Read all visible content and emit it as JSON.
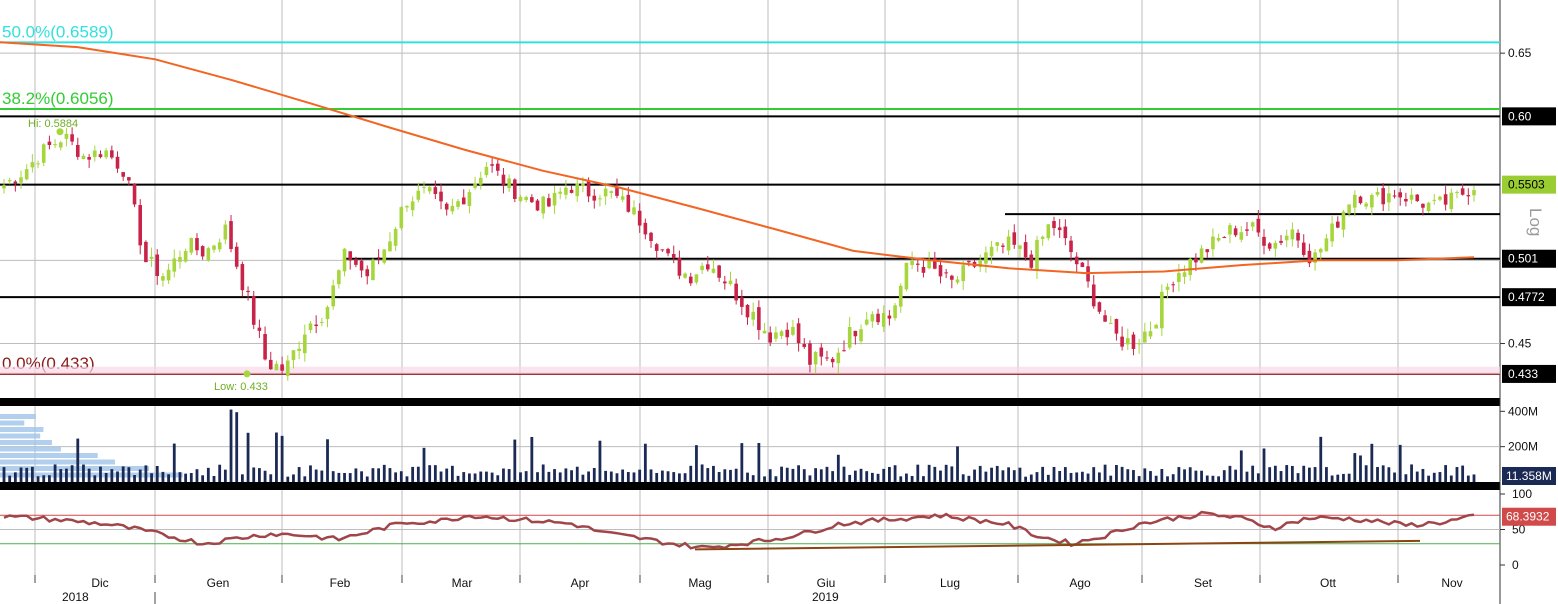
{
  "colors": {
    "up": "#a6d63c",
    "down": "#c8244a",
    "ma": "#f26522",
    "fib50": "#33e0e0",
    "fib382": "#33cc33",
    "fib0": "#8b1a1a",
    "volume": "#1b2a55",
    "rsi": "#a0464a",
    "grid": "#bdbdbd",
    "tag_green": "#9acd32"
  },
  "chart_data": [
    {
      "type": "candlestick",
      "panel": "price",
      "ylim": [
        0.42,
        0.69
      ],
      "yticks": [
        0.45,
        0.65
      ],
      "months": [
        "Dic",
        "Gen",
        "Feb",
        "Mar",
        "Apr",
        "Mag",
        "Giu",
        "Lug",
        "Ago",
        "Set",
        "Ott",
        "Nov"
      ],
      "years": [
        "2018",
        "2019"
      ],
      "price_path": [
        0.55,
        0.56,
        0.575,
        0.585,
        0.57,
        0.575,
        0.56,
        0.5,
        0.49,
        0.51,
        0.505,
        0.52,
        0.48,
        0.44,
        0.435,
        0.46,
        0.47,
        0.505,
        0.49,
        0.51,
        0.54,
        0.545,
        0.53,
        0.545,
        0.565,
        0.55,
        0.54,
        0.535,
        0.55,
        0.545,
        0.545,
        0.535,
        0.52,
        0.5,
        0.49,
        0.5,
        0.485,
        0.47,
        0.455,
        0.46,
        0.44,
        0.44,
        0.455,
        0.47,
        0.465,
        0.5,
        0.495,
        0.485,
        0.495,
        0.505,
        0.51,
        0.5,
        0.525,
        0.505,
        0.48,
        0.455,
        0.45,
        0.46,
        0.49,
        0.5,
        0.51,
        0.52,
        0.52,
        0.51,
        0.52,
        0.5,
        0.52,
        0.545,
        0.54,
        0.545,
        0.54,
        0.535,
        0.54,
        0.55
      ],
      "ma_path": [
        0.659,
        0.655,
        0.645,
        0.628,
        0.61,
        0.592,
        0.575,
        0.56,
        0.548,
        0.534,
        0.52,
        0.506,
        0.5,
        0.495,
        0.492,
        0.493,
        0.497,
        0.5,
        0.5,
        0.502
      ],
      "fib_levels": [
        {
          "label": "50.0%(0.6589)",
          "value": 0.6589
        },
        {
          "label": "38.2%(0.6056)",
          "value": 0.6056
        },
        {
          "label": "0.0%(0.433)",
          "value": 0.433
        }
      ],
      "levels": [
        0.6,
        0.5503,
        0.5301,
        0.501,
        0.4772
      ],
      "tags": [
        "0.60",
        "0.5503",
        "0.501",
        "0.4772",
        "0.433"
      ],
      "hi_label": "Hi: 0.5884",
      "low_label": "Low: 0.433",
      "side_text": "Log"
    },
    {
      "type": "bar",
      "panel": "volume",
      "yticks": [
        "400M",
        "200M"
      ],
      "last_label": "11.358M",
      "ylim": [
        0,
        430
      ],
      "units": "M"
    },
    {
      "type": "line",
      "panel": "rsi",
      "ylim": [
        0,
        100
      ],
      "yticks": [
        "100",
        "50",
        "0"
      ],
      "bands": [
        70,
        30
      ],
      "last_label": "68.3932",
      "rsi_path": [
        68,
        66,
        62,
        58,
        50,
        40,
        30,
        38,
        44,
        42,
        36,
        48,
        60,
        62,
        70,
        66,
        62,
        58,
        45,
        38,
        30,
        24,
        30,
        36,
        45,
        58,
        62,
        66,
        70,
        64,
        58,
        40,
        30,
        42,
        58,
        66,
        72,
        66,
        52,
        66,
        66,
        62,
        56,
        60,
        68
      ]
    }
  ]
}
